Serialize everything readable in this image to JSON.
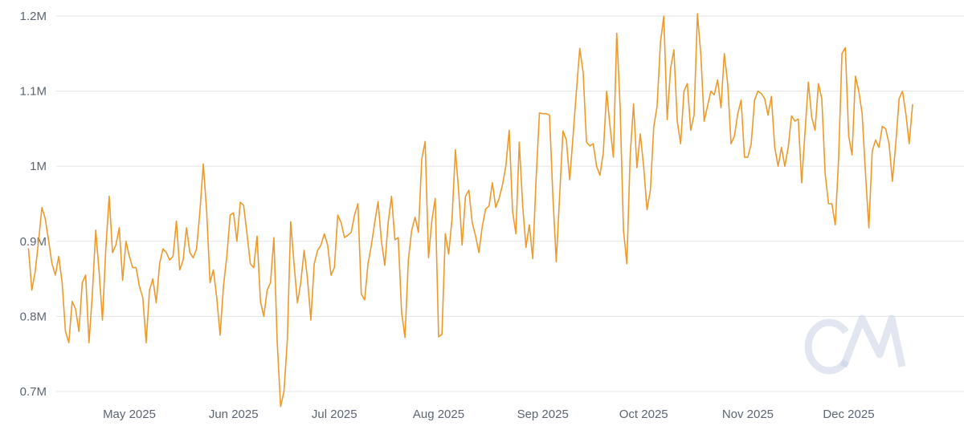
{
  "chart_data": {
    "type": "line",
    "title": "",
    "xlabel": "",
    "ylabel": "",
    "x_start": "2025-04-01",
    "x_end": "2025-12-31",
    "x_ticks": [
      {
        "date": "2025-05-01",
        "label": "May 2025"
      },
      {
        "date": "2025-06-01",
        "label": "Jun 2025"
      },
      {
        "date": "2025-07-01",
        "label": "Jul 2025"
      },
      {
        "date": "2025-08-01",
        "label": "Aug 2025"
      },
      {
        "date": "2025-09-01",
        "label": "Sep 2025"
      },
      {
        "date": "2025-10-01",
        "label": "Oct 2025"
      },
      {
        "date": "2025-11-01",
        "label": "Nov 2025"
      },
      {
        "date": "2025-12-01",
        "label": "Dec 2025"
      }
    ],
    "y_ticks": [
      {
        "value": 700000,
        "label": "0.7M"
      },
      {
        "value": 800000,
        "label": "0.8M"
      },
      {
        "value": 900000,
        "label": "0.9M"
      },
      {
        "value": 1000000,
        "label": "1M"
      },
      {
        "value": 1100000,
        "label": "1.1M"
      },
      {
        "value": 1200000,
        "label": "1.2M"
      }
    ],
    "ylim": [
      700000,
      1200000
    ],
    "grid": "horizontal",
    "legend": "none",
    "line_color": "#ee9a2a",
    "series": [
      {
        "values": [
          [
            0,
            890000
          ],
          [
            1,
            835000
          ],
          [
            2,
            860000
          ],
          [
            3,
            900000
          ],
          [
            4,
            945000
          ],
          [
            5,
            930000
          ],
          [
            6,
            900000
          ],
          [
            7,
            870000
          ],
          [
            8,
            855000
          ],
          [
            9,
            880000
          ],
          [
            10,
            845000
          ],
          [
            11,
            780000
          ],
          [
            12,
            765000
          ],
          [
            13,
            820000
          ],
          [
            14,
            810000
          ],
          [
            15,
            780000
          ],
          [
            16,
            845000
          ],
          [
            17,
            855000
          ],
          [
            18,
            765000
          ],
          [
            19,
            830000
          ],
          [
            20,
            915000
          ],
          [
            21,
            860000
          ],
          [
            22,
            795000
          ],
          [
            23,
            890000
          ],
          [
            24,
            960000
          ],
          [
            25,
            885000
          ],
          [
            26,
            895000
          ],
          [
            27,
            918000
          ],
          [
            28,
            848000
          ],
          [
            29,
            900000
          ],
          [
            30,
            880000
          ],
          [
            31,
            865000
          ],
          [
            32,
            865000
          ],
          [
            33,
            840000
          ],
          [
            34,
            825000
          ],
          [
            35,
            765000
          ],
          [
            36,
            835000
          ],
          [
            37,
            850000
          ],
          [
            38,
            818000
          ],
          [
            39,
            870000
          ],
          [
            40,
            890000
          ],
          [
            41,
            885000
          ],
          [
            42,
            875000
          ],
          [
            43,
            880000
          ],
          [
            44,
            927000
          ],
          [
            45,
            862000
          ],
          [
            46,
            875000
          ],
          [
            47,
            918000
          ],
          [
            48,
            885000
          ],
          [
            49,
            878000
          ],
          [
            50,
            890000
          ],
          [
            51,
            940000
          ],
          [
            52,
            1003000
          ],
          [
            53,
            940000
          ],
          [
            54,
            845000
          ],
          [
            55,
            862000
          ],
          [
            56,
            825000
          ],
          [
            57,
            775000
          ],
          [
            58,
            840000
          ],
          [
            59,
            880000
          ],
          [
            60,
            935000
          ],
          [
            61,
            938000
          ],
          [
            62,
            900000
          ],
          [
            63,
            952000
          ],
          [
            64,
            948000
          ],
          [
            65,
            910000
          ],
          [
            66,
            870000
          ],
          [
            67,
            865000
          ],
          [
            68,
            907000
          ],
          [
            69,
            820000
          ],
          [
            70,
            800000
          ],
          [
            71,
            835000
          ],
          [
            72,
            845000
          ],
          [
            73,
            905000
          ],
          [
            74,
            765000
          ],
          [
            75,
            680000
          ],
          [
            76,
            700000
          ],
          [
            77,
            768000
          ],
          [
            78,
            926000
          ],
          [
            79,
            870000
          ],
          [
            80,
            818000
          ],
          [
            81,
            845000
          ],
          [
            82,
            888000
          ],
          [
            83,
            850000
          ],
          [
            84,
            795000
          ],
          [
            85,
            870000
          ],
          [
            86,
            888000
          ],
          [
            87,
            895000
          ],
          [
            88,
            910000
          ],
          [
            89,
            895000
          ],
          [
            90,
            855000
          ],
          [
            91,
            865000
          ],
          [
            92,
            935000
          ],
          [
            93,
            925000
          ],
          [
            94,
            905000
          ],
          [
            95,
            908000
          ],
          [
            96,
            912000
          ],
          [
            97,
            935000
          ],
          [
            98,
            950000
          ],
          [
            99,
            830000
          ],
          [
            100,
            822000
          ],
          [
            101,
            870000
          ],
          [
            102,
            895000
          ],
          [
            103,
            925000
          ],
          [
            104,
            953000
          ],
          [
            105,
            900000
          ],
          [
            106,
            868000
          ],
          [
            107,
            925000
          ],
          [
            108,
            960000
          ],
          [
            109,
            902000
          ],
          [
            110,
            905000
          ],
          [
            111,
            805000
          ],
          [
            112,
            772000
          ],
          [
            113,
            875000
          ],
          [
            114,
            915000
          ],
          [
            115,
            932000
          ],
          [
            116,
            912000
          ],
          [
            117,
            1010000
          ],
          [
            118,
            1033000
          ],
          [
            119,
            878000
          ],
          [
            120,
            928000
          ],
          [
            121,
            957000
          ],
          [
            122,
            773000
          ],
          [
            123,
            776000
          ],
          [
            124,
            910000
          ],
          [
            125,
            883000
          ],
          [
            126,
            930000
          ],
          [
            127,
            1022000
          ],
          [
            128,
            965000
          ],
          [
            129,
            895000
          ],
          [
            130,
            960000
          ],
          [
            131,
            968000
          ],
          [
            132,
            925000
          ],
          [
            133,
            907000
          ],
          [
            134,
            885000
          ],
          [
            135,
            920000
          ],
          [
            136,
            943000
          ],
          [
            137,
            947000
          ],
          [
            138,
            978000
          ],
          [
            139,
            945000
          ],
          [
            140,
            957000
          ],
          [
            141,
            975000
          ],
          [
            142,
            1000000
          ],
          [
            143,
            1048000
          ],
          [
            144,
            940000
          ],
          [
            145,
            910000
          ],
          [
            146,
            1032000
          ],
          [
            147,
            948000
          ],
          [
            148,
            892000
          ],
          [
            149,
            922000
          ],
          [
            150,
            877000
          ],
          [
            151,
            982000
          ],
          [
            152,
            1071000
          ],
          [
            153,
            1070000
          ],
          [
            154,
            1070000
          ],
          [
            155,
            1068000
          ],
          [
            156,
            960000
          ],
          [
            157,
            873000
          ],
          [
            158,
            960000
          ],
          [
            159,
            1047000
          ],
          [
            160,
            1035000
          ],
          [
            161,
            982000
          ],
          [
            162,
            1040000
          ],
          [
            163,
            1100000
          ],
          [
            164,
            1157000
          ],
          [
            165,
            1125000
          ],
          [
            166,
            1032000
          ],
          [
            167,
            1027000
          ],
          [
            168,
            1030000
          ],
          [
            169,
            1000000
          ],
          [
            170,
            988000
          ],
          [
            171,
            1018000
          ],
          [
            172,
            1100000
          ],
          [
            173,
            1053000
          ],
          [
            174,
            1012000
          ],
          [
            175,
            1177000
          ],
          [
            176,
            1080000
          ],
          [
            177,
            915000
          ],
          [
            178,
            870000
          ],
          [
            179,
            1015000
          ],
          [
            180,
            1083000
          ],
          [
            181,
            998000
          ],
          [
            182,
            1043000
          ],
          [
            183,
            1000000
          ],
          [
            184,
            942000
          ],
          [
            185,
            968000
          ],
          [
            186,
            1052000
          ],
          [
            187,
            1080000
          ],
          [
            188,
            1165000
          ],
          [
            189,
            1200000
          ],
          [
            190,
            1062000
          ],
          [
            191,
            1130000
          ],
          [
            192,
            1155000
          ],
          [
            193,
            1060000
          ],
          [
            194,
            1030000
          ],
          [
            195,
            1100000
          ],
          [
            196,
            1110000
          ],
          [
            197,
            1048000
          ],
          [
            198,
            1068000
          ],
          [
            199,
            1203000
          ],
          [
            200,
            1150000
          ],
          [
            201,
            1060000
          ],
          [
            202,
            1080000
          ],
          [
            203,
            1100000
          ],
          [
            204,
            1095000
          ],
          [
            205,
            1115000
          ],
          [
            206,
            1078000
          ],
          [
            207,
            1150000
          ],
          [
            208,
            1110000
          ],
          [
            209,
            1030000
          ],
          [
            210,
            1040000
          ],
          [
            211,
            1070000
          ],
          [
            212,
            1088000
          ],
          [
            213,
            1012000
          ],
          [
            214,
            1012000
          ],
          [
            215,
            1030000
          ],
          [
            216,
            1088000
          ],
          [
            217,
            1100000
          ],
          [
            218,
            1097000
          ],
          [
            219,
            1090000
          ],
          [
            220,
            1068000
          ],
          [
            221,
            1093000
          ],
          [
            222,
            1025000
          ],
          [
            223,
            1000000
          ],
          [
            224,
            1025000
          ],
          [
            225,
            1000000
          ],
          [
            226,
            1025000
          ],
          [
            227,
            1067000
          ],
          [
            228,
            1060000
          ],
          [
            229,
            1063000
          ],
          [
            230,
            978000
          ],
          [
            231,
            1045000
          ],
          [
            232,
            1112000
          ],
          [
            233,
            1065000
          ],
          [
            234,
            1048000
          ],
          [
            235,
            1110000
          ],
          [
            236,
            1090000
          ],
          [
            237,
            990000
          ],
          [
            238,
            950000
          ],
          [
            239,
            950000
          ],
          [
            240,
            922000
          ],
          [
            241,
            1010000
          ],
          [
            242,
            1150000
          ],
          [
            243,
            1158000
          ],
          [
            244,
            1040000
          ],
          [
            245,
            1015000
          ],
          [
            246,
            1120000
          ],
          [
            247,
            1100000
          ],
          [
            248,
            1070000
          ],
          [
            249,
            990000
          ],
          [
            250,
            918000
          ],
          [
            251,
            1020000
          ],
          [
            252,
            1035000
          ],
          [
            253,
            1025000
          ],
          [
            254,
            1053000
          ],
          [
            255,
            1050000
          ],
          [
            256,
            1030000
          ],
          [
            257,
            980000
          ],
          [
            258,
            1030000
          ],
          [
            259,
            1090000
          ],
          [
            260,
            1100000
          ],
          [
            261,
            1070000
          ],
          [
            262,
            1030000
          ],
          [
            263,
            1082000
          ]
        ]
      }
    ]
  },
  "watermark": {
    "text": "CM",
    "color": "#c9d1e6"
  }
}
